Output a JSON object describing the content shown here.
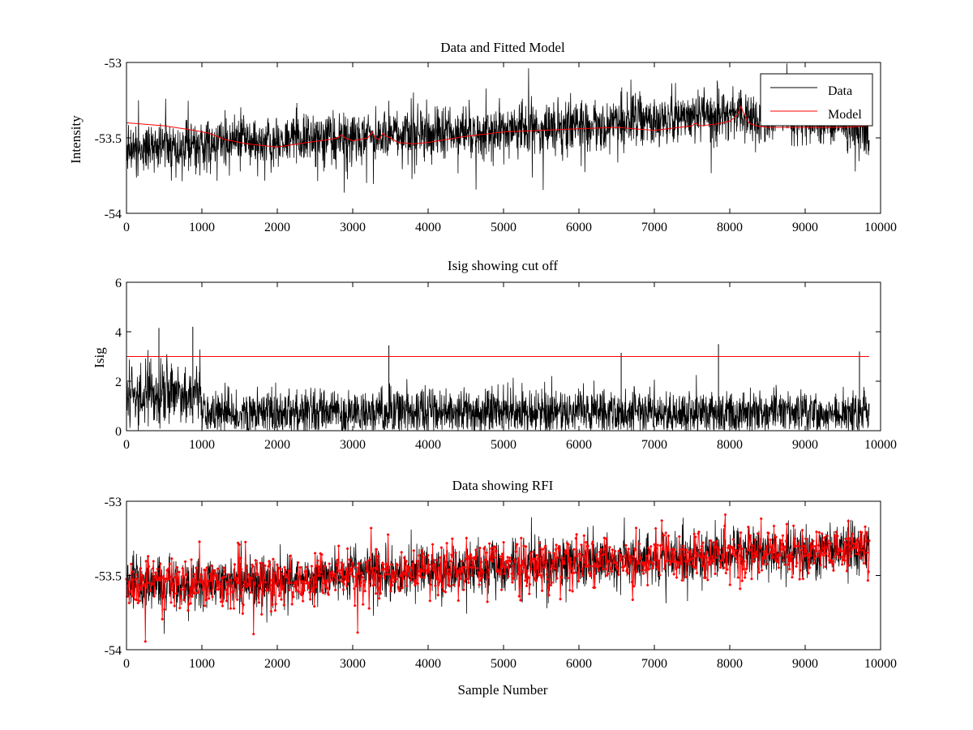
{
  "chart_data": [
    {
      "type": "line",
      "title": "Data and Fitted Model",
      "xlabel": "",
      "ylabel": "Intensity",
      "xlim": [
        0,
        10000
      ],
      "ylim": [
        -54,
        -53
      ],
      "xticks": [
        0,
        1000,
        2000,
        3000,
        4000,
        5000,
        6000,
        7000,
        8000,
        9000,
        10000
      ],
      "yticks": [
        -54,
        -53.5,
        -53
      ],
      "ytick_labels": [
        "-54",
        "-53.5",
        "-53"
      ],
      "grid": false,
      "legend": {
        "placement": "top-right",
        "entries": [
          "Data",
          "Model"
        ]
      },
      "series": [
        {
          "name": "Data",
          "color": "#000000",
          "style": "noisy-line",
          "trend_x": [
            0,
            1000,
            2000,
            3000,
            4000,
            5000,
            6000,
            7000,
            8000,
            9000,
            9850
          ],
          "trend_y": [
            -53.58,
            -53.55,
            -53.52,
            -53.5,
            -53.47,
            -53.45,
            -53.42,
            -53.38,
            -53.34,
            -53.37,
            -53.43
          ],
          "noise_amplitude": 0.09,
          "x_end": 9850
        },
        {
          "name": "Model",
          "color": "#ff0000",
          "style": "line",
          "x": [
            0,
            500,
            900,
            1100,
            1300,
            1600,
            2000,
            2400,
            2700,
            2800,
            2850,
            2900,
            3000,
            3200,
            3260,
            3300,
            3350,
            3400,
            3440,
            3500,
            3600,
            3800,
            4000,
            4500,
            5000,
            5500,
            6000,
            6500,
            7000,
            7500,
            7550,
            7600,
            7800,
            8000,
            8100,
            8150,
            8180,
            8250,
            8350,
            8500,
            9000,
            9500,
            9850
          ],
          "y": [
            -53.4,
            -53.42,
            -53.45,
            -53.47,
            -53.51,
            -53.54,
            -53.56,
            -53.53,
            -53.51,
            -53.5,
            -53.48,
            -53.5,
            -53.52,
            -53.5,
            -53.46,
            -53.5,
            -53.51,
            -53.47,
            -53.49,
            -53.5,
            -53.53,
            -53.54,
            -53.53,
            -53.49,
            -53.46,
            -53.45,
            -53.44,
            -53.43,
            -53.45,
            -53.42,
            -53.4,
            -53.42,
            -53.41,
            -53.39,
            -53.35,
            -53.29,
            -53.33,
            -53.4,
            -53.42,
            -53.43,
            -53.43,
            -53.43,
            -53.42
          ]
        }
      ]
    },
    {
      "type": "line",
      "title": "Isig showing cut off",
      "xlabel": "",
      "ylabel": "Isig",
      "xlim": [
        0,
        10000
      ],
      "ylim": [
        0,
        6
      ],
      "xticks": [
        0,
        1000,
        2000,
        3000,
        4000,
        5000,
        6000,
        7000,
        8000,
        9000,
        10000
      ],
      "yticks": [
        0,
        2,
        4,
        6
      ],
      "ytick_labels": [
        "0",
        "2",
        "4",
        "6"
      ],
      "grid": false,
      "series": [
        {
          "color": "#000000",
          "style": "noisy-positive",
          "segments": [
            {
              "x0": 0,
              "x1": 1000,
              "mean": 1.5,
              "spread": 1.3
            },
            {
              "x0": 1000,
              "x1": 9850,
              "mean": 0.75,
              "spread": 0.85
            }
          ],
          "peaks": [
            [
              430,
              4.15
            ],
            [
              880,
              4.2
            ],
            [
              3480,
              3.45
            ],
            [
              6560,
              3.15
            ],
            [
              7850,
              3.5
            ],
            [
              9720,
              3.2
            ]
          ],
          "x_end": 9850
        },
        {
          "color": "#ff0000",
          "style": "line",
          "x": [
            0,
            9850
          ],
          "y": [
            3,
            3
          ]
        }
      ]
    },
    {
      "type": "scatter",
      "title": "Data showing RFI",
      "xlabel": "Sample Number",
      "ylabel": "",
      "xlim": [
        0,
        10000
      ],
      "ylim": [
        -54,
        -53
      ],
      "xticks": [
        0,
        1000,
        2000,
        3000,
        4000,
        5000,
        6000,
        7000,
        8000,
        9000,
        10000
      ],
      "yticks": [
        -54,
        -53.5,
        -53
      ],
      "ytick_labels": [
        "-54",
        "-53.5",
        "-53"
      ],
      "grid": false,
      "series": [
        {
          "color": "#000000",
          "style": "noisy-line",
          "trend_x": [
            0,
            2000,
            4000,
            6000,
            8000,
            9850
          ],
          "trend_y": [
            -53.58,
            -53.53,
            -53.47,
            -53.41,
            -53.36,
            -53.32
          ],
          "noise_amplitude": 0.08,
          "x_end": 9850
        },
        {
          "color": "#ff0000",
          "style": "markers-line",
          "trend_x": [
            0,
            2000,
            4000,
            6000,
            8000,
            9850
          ],
          "trend_y": [
            -53.58,
            -53.53,
            -53.47,
            -53.41,
            -53.36,
            -53.32
          ],
          "noise_amplitude": 0.09,
          "x_end": 9850
        }
      ]
    }
  ]
}
